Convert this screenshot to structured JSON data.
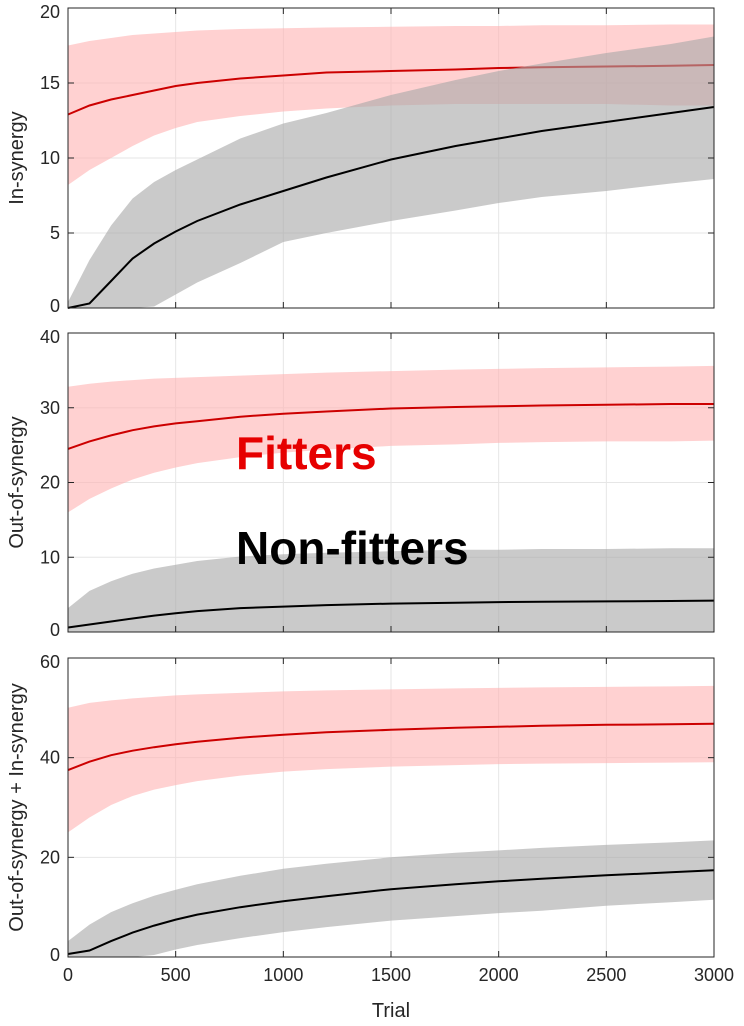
{
  "figure": {
    "legend": [
      {
        "label": "Fitters",
        "color": "#e60000"
      },
      {
        "label": "Non-fitters",
        "color": "#000000"
      }
    ],
    "colors": {
      "fitters_line": "#cc0000",
      "fitters_band": "#ffb3b3",
      "nonfitters_line": "#000000",
      "nonfitters_band": "#a6a6a6"
    }
  },
  "chart_data": [
    {
      "type": "line",
      "ylabel": "In-synergy",
      "xlabel": "",
      "xlim": [
        0,
        3000
      ],
      "ylim": [
        0,
        20
      ],
      "xticks": [
        0,
        500,
        1000,
        1500,
        2000,
        2500,
        3000
      ],
      "yticks": [
        0,
        5,
        10,
        15,
        20
      ],
      "grid": true,
      "x": [
        0,
        100,
        200,
        300,
        400,
        500,
        600,
        800,
        1000,
        1200,
        1500,
        1800,
        2000,
        2200,
        2500,
        2800,
        3000
      ],
      "series": [
        {
          "name": "Fitters",
          "mean": [
            12.9,
            13.5,
            13.9,
            14.2,
            14.5,
            14.8,
            15.0,
            15.3,
            15.5,
            15.7,
            15.8,
            15.9,
            16.0,
            16.05,
            16.1,
            16.15,
            16.2
          ],
          "upper": [
            17.5,
            17.8,
            18.0,
            18.2,
            18.3,
            18.4,
            18.5,
            18.6,
            18.65,
            18.7,
            18.75,
            18.8,
            18.8,
            18.85,
            18.85,
            18.9,
            18.9
          ],
          "lower": [
            8.2,
            9.2,
            10.0,
            10.8,
            11.5,
            12.0,
            12.4,
            12.8,
            13.1,
            13.3,
            13.5,
            13.6,
            13.6,
            13.6,
            13.6,
            13.5,
            13.5
          ]
        },
        {
          "name": "Non-fitters",
          "mean": [
            0.0,
            0.3,
            1.8,
            3.3,
            4.3,
            5.1,
            5.8,
            6.9,
            7.8,
            8.7,
            9.9,
            10.8,
            11.3,
            11.8,
            12.4,
            13.0,
            13.4
          ],
          "upper": [
            0.4,
            3.2,
            5.5,
            7.3,
            8.4,
            9.2,
            9.9,
            11.3,
            12.3,
            13.0,
            14.2,
            15.2,
            15.8,
            16.3,
            17.0,
            17.6,
            18.1
          ],
          "lower": [
            0.0,
            0.0,
            0.0,
            0.0,
            0.1,
            0.9,
            1.7,
            3.0,
            4.4,
            5.0,
            5.8,
            6.5,
            7.0,
            7.4,
            7.8,
            8.3,
            8.6
          ]
        }
      ]
    },
    {
      "type": "line",
      "ylabel": "Out-of-synergy",
      "xlabel": "",
      "xlim": [
        0,
        3000
      ],
      "ylim": [
        0,
        40
      ],
      "xticks": [
        0,
        500,
        1000,
        1500,
        2000,
        2500,
        3000
      ],
      "yticks": [
        0,
        10,
        20,
        30,
        40
      ],
      "grid": true,
      "x": [
        0,
        100,
        200,
        300,
        400,
        500,
        600,
        800,
        1000,
        1200,
        1500,
        1800,
        2000,
        2200,
        2500,
        2800,
        3000
      ],
      "series": [
        {
          "name": "Fitters",
          "mean": [
            24.5,
            25.5,
            26.3,
            27.0,
            27.5,
            27.9,
            28.2,
            28.8,
            29.2,
            29.5,
            29.9,
            30.1,
            30.2,
            30.3,
            30.4,
            30.5,
            30.5
          ],
          "upper": [
            32.8,
            33.2,
            33.5,
            33.7,
            33.9,
            34.0,
            34.1,
            34.3,
            34.5,
            34.7,
            34.9,
            35.1,
            35.2,
            35.3,
            35.4,
            35.5,
            35.6
          ],
          "lower": [
            16.0,
            17.8,
            19.2,
            20.4,
            21.3,
            22.0,
            22.6,
            23.4,
            24.0,
            24.4,
            24.9,
            25.1,
            25.3,
            25.4,
            25.5,
            25.5,
            25.6
          ]
        },
        {
          "name": "Non-fitters",
          "mean": [
            0.6,
            1.0,
            1.4,
            1.8,
            2.2,
            2.5,
            2.8,
            3.2,
            3.4,
            3.6,
            3.8,
            3.9,
            4.0,
            4.05,
            4.1,
            4.15,
            4.2
          ],
          "upper": [
            3.2,
            5.5,
            6.8,
            7.8,
            8.5,
            9.0,
            9.5,
            10.1,
            10.4,
            10.6,
            10.8,
            11.0,
            11.0,
            11.1,
            11.1,
            11.2,
            11.2
          ],
          "lower": [
            0.0,
            0.0,
            0.0,
            0.0,
            0.0,
            0.0,
            0.0,
            0.0,
            0.0,
            0.0,
            0.0,
            0.0,
            0.0,
            0.0,
            0.0,
            0.0,
            0.0
          ]
        }
      ]
    },
    {
      "type": "line",
      "ylabel": "Out-of-synergy + In-synergy",
      "xlabel": "Trial",
      "xlim": [
        0,
        3000
      ],
      "ylim": [
        0,
        60
      ],
      "xticks": [
        0,
        500,
        1000,
        1500,
        2000,
        2500,
        3000
      ],
      "yticks": [
        0,
        20,
        40,
        60
      ],
      "grid": true,
      "x": [
        0,
        100,
        200,
        300,
        400,
        500,
        600,
        800,
        1000,
        1200,
        1500,
        1800,
        2000,
        2200,
        2500,
        2800,
        3000
      ],
      "series": [
        {
          "name": "Fitters",
          "mean": [
            37.5,
            39.2,
            40.5,
            41.4,
            42.1,
            42.7,
            43.2,
            44.0,
            44.6,
            45.1,
            45.6,
            46.0,
            46.2,
            46.4,
            46.6,
            46.7,
            46.8
          ],
          "upper": [
            50.0,
            51.0,
            51.5,
            51.9,
            52.2,
            52.5,
            52.7,
            53.0,
            53.3,
            53.5,
            53.7,
            53.9,
            54.0,
            54.1,
            54.2,
            54.3,
            54.4
          ],
          "lower": [
            25.0,
            28.0,
            30.5,
            32.3,
            33.6,
            34.5,
            35.3,
            36.4,
            37.2,
            37.7,
            38.2,
            38.5,
            38.7,
            38.8,
            38.9,
            39.0,
            39.1
          ]
        },
        {
          "name": "Non-fitters",
          "mean": [
            0.6,
            1.3,
            3.2,
            4.9,
            6.3,
            7.5,
            8.5,
            10.0,
            11.2,
            12.2,
            13.6,
            14.6,
            15.2,
            15.7,
            16.4,
            17.0,
            17.4
          ],
          "upper": [
            3.2,
            6.5,
            9.0,
            10.8,
            12.3,
            13.5,
            14.6,
            16.3,
            17.7,
            18.7,
            20.0,
            20.9,
            21.4,
            21.9,
            22.5,
            23.0,
            23.4
          ],
          "lower": [
            0.0,
            0.0,
            0.0,
            0.0,
            0.4,
            1.5,
            2.4,
            3.8,
            5.0,
            6.0,
            7.3,
            8.2,
            8.8,
            9.3,
            10.3,
            11.0,
            11.5
          ]
        }
      ]
    }
  ]
}
